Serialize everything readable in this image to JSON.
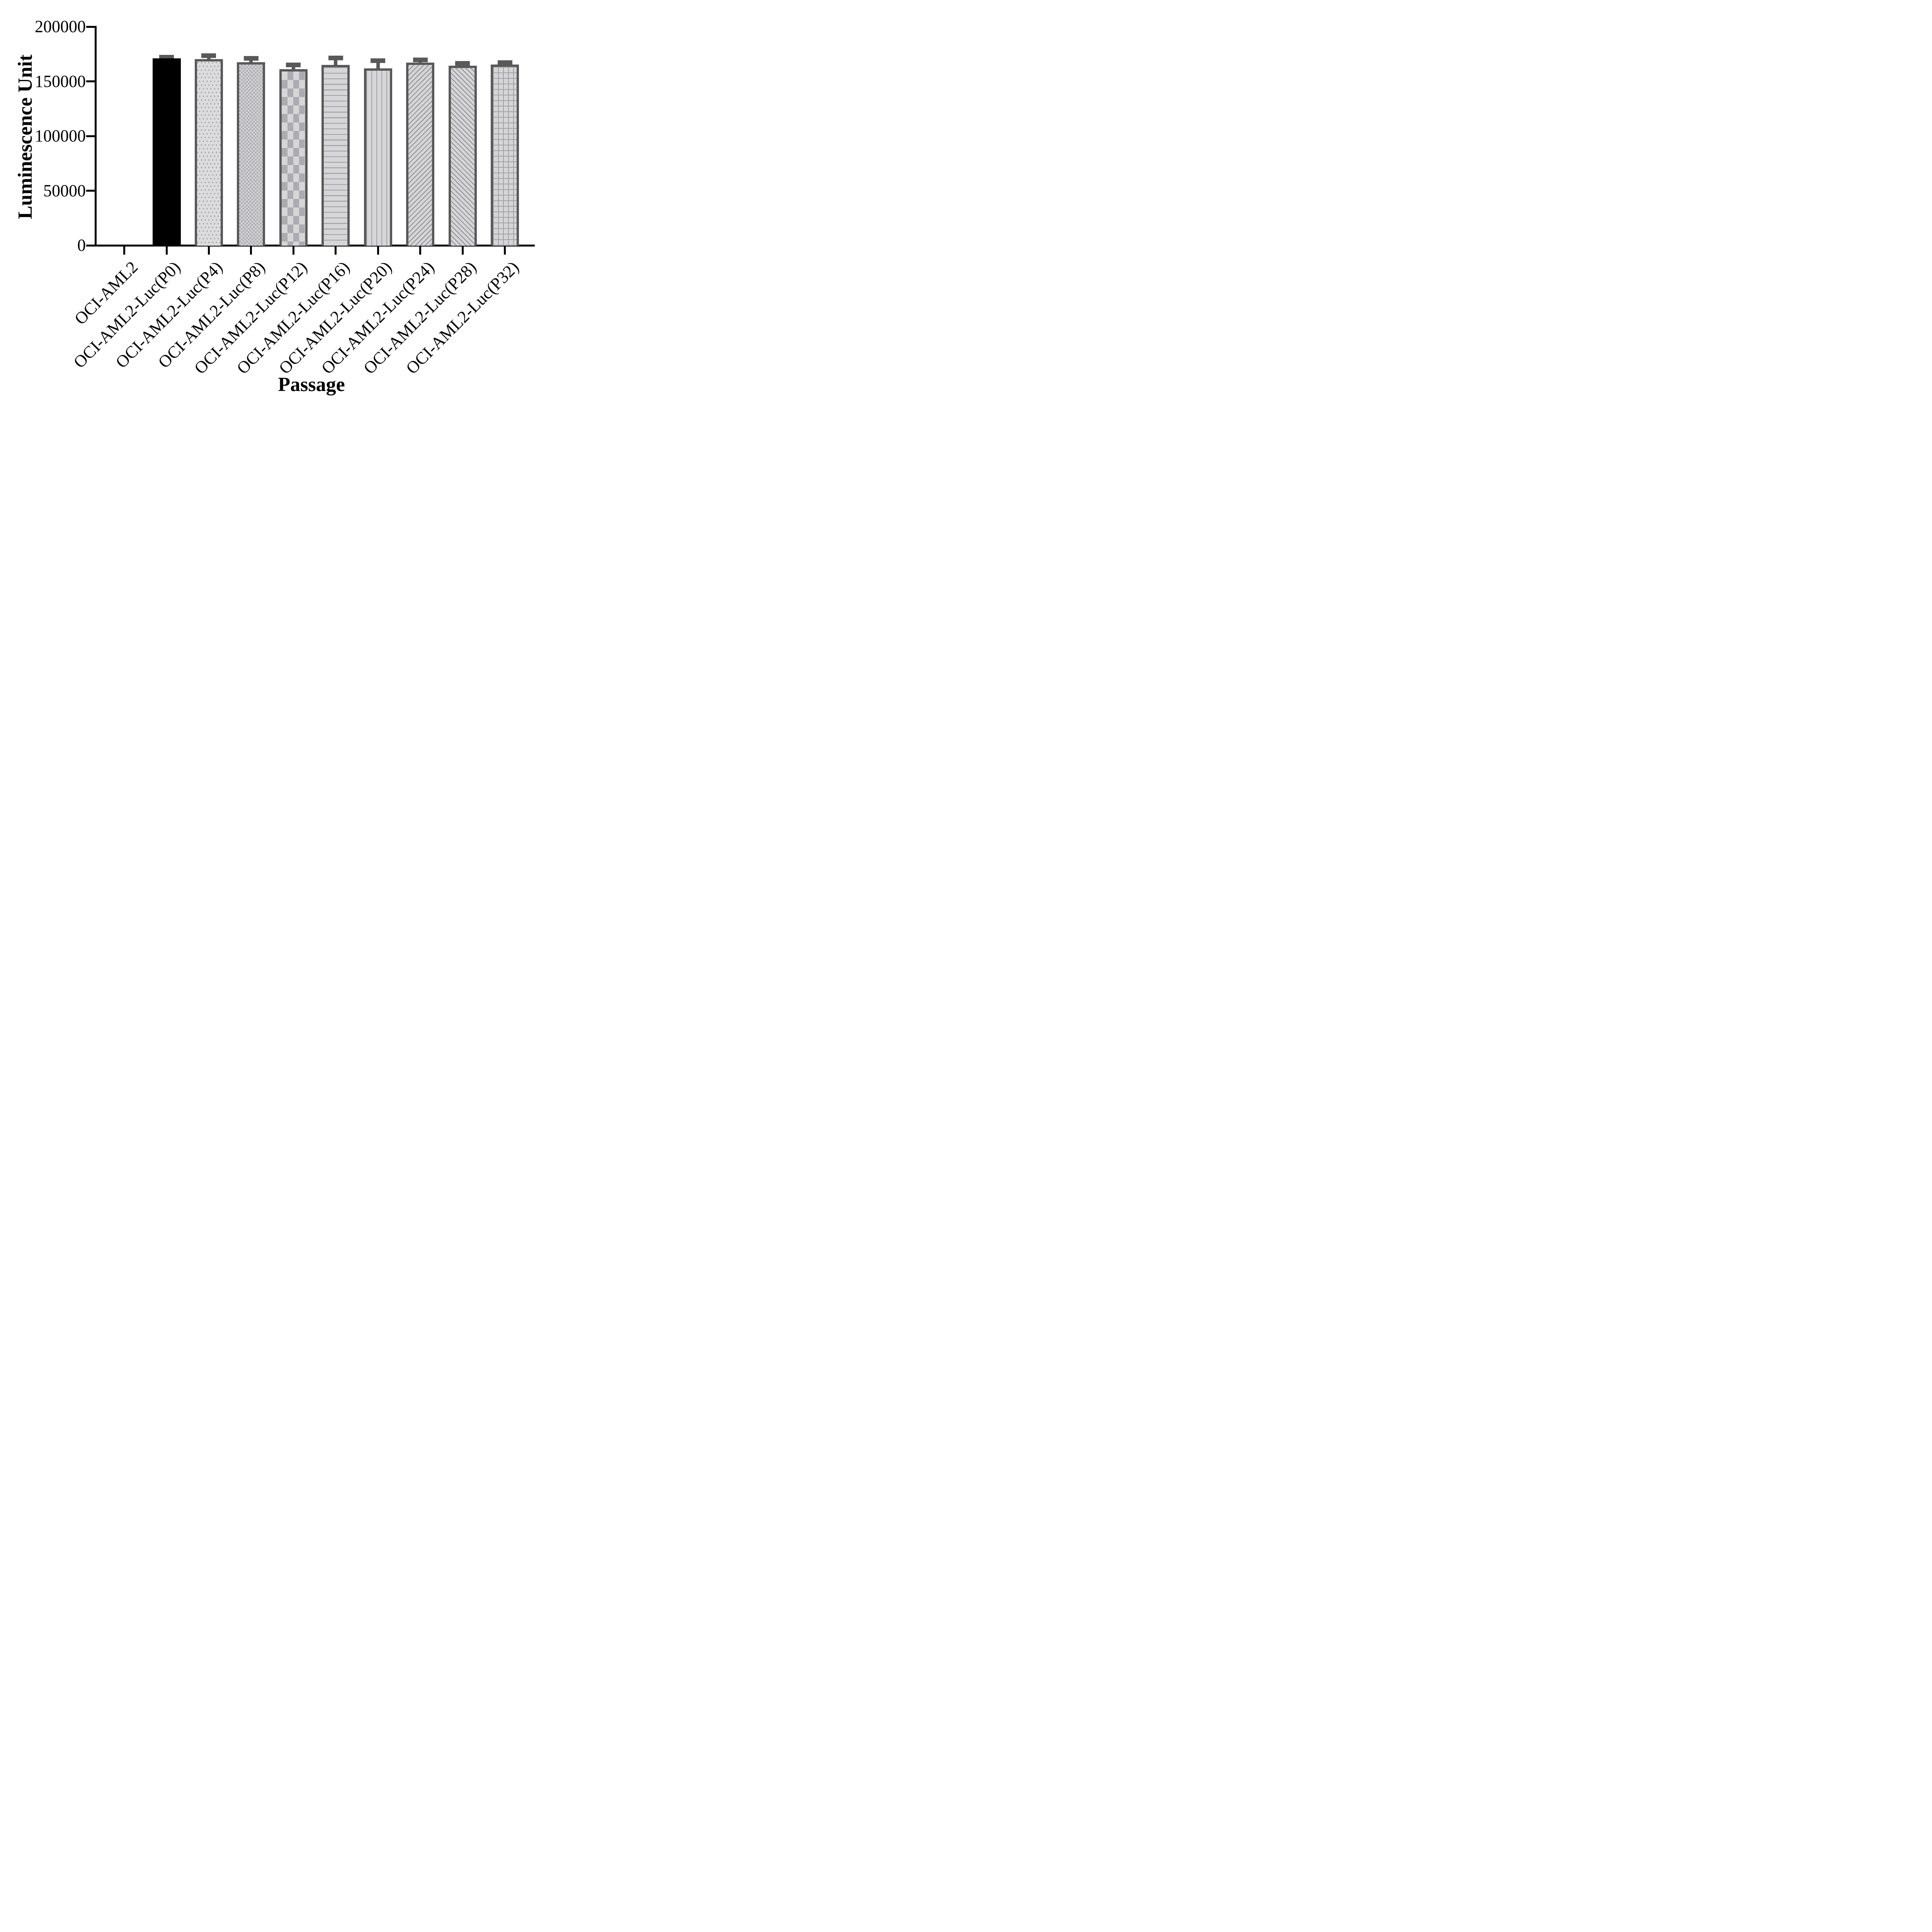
{
  "figure": {
    "background": "#ffffff"
  },
  "chart_data": {
    "type": "bar",
    "title": "",
    "xlabel": "Passage",
    "ylabel": "Luminescence Unit",
    "ylim": [
      0,
      200000
    ],
    "yticks": [
      0,
      50000,
      100000,
      150000,
      200000
    ],
    "ytick_labels": [
      "0",
      "50000",
      "100000",
      "150000",
      "200000"
    ],
    "grid": "off",
    "legend": "none",
    "error_bars": "SD, upper side only",
    "categories": [
      "OCI-AML2",
      "OCI-AML2-Luc(P0)",
      "OCI-AML2-Luc(P4)",
      "OCI-AML2-Luc(P8)",
      "OCI-AML2-Luc(P12)",
      "OCI-AML2-Luc(P16)",
      "OCI-AML2-Luc(P20)",
      "OCI-AML2-Luc(P24)",
      "OCI-AML2-Luc(P28)",
      "OCI-AML2-Luc(P32)"
    ],
    "values": [
      0,
      171000,
      170500,
      167500,
      161000,
      165000,
      162000,
      167000,
      164500,
      165500
    ],
    "errors": [
      0,
      1000,
      3000,
      3500,
      4000,
      6500,
      6800,
      2700,
      2000,
      1600
    ],
    "bar_patterns": [
      "none",
      "solid-black",
      "dots",
      "checker-fine",
      "checker-coarse",
      "h-lines",
      "v-lines",
      "diag-up",
      "diag-down",
      "grid"
    ],
    "colors": {
      "axis": "#000000",
      "bar_border": "#595959",
      "error_bar": "#595959",
      "solid_bar": "#000000",
      "pattern_fill_light": "#d6d6d8",
      "pattern_gray": "#a0a0a6",
      "text": "#000000"
    }
  }
}
